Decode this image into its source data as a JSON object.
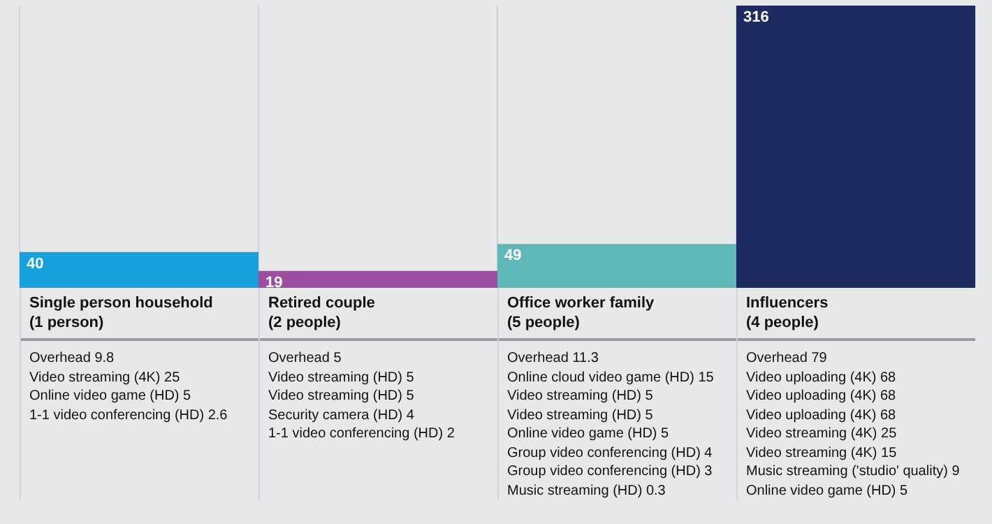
{
  "chart_data": {
    "type": "bar",
    "categories": [
      "Single person household\n(1 person)",
      "Retired couple\n(2 people)",
      "Office worker family\n(5 people)",
      "Influencers\n(4 people)"
    ],
    "values": [
      40,
      19,
      49,
      316
    ],
    "colors": [
      "#16a0dc",
      "#9c4f9e",
      "#5fb8b7",
      "#1f2a60"
    ],
    "data_labels": true,
    "grid": "x",
    "annotations": [
      "Overhead 9.8\nVideo streaming (4K) 25\nOnline video game (HD) 5\n1-1 video conferencing (HD) 2.6",
      "Overhead 5\nVideo streaming (HD) 5\nVideo streaming (HD) 5\nSecurity camera (HD) 4\n1-1 video conferencing (HD) 2",
      "Overhead 11.3\nOnline cloud video game (HD) 15\nVideo streaming (HD) 5\nVideo streaming (HD) 5\nOnline video game (HD) 5\nGroup video conferencing (HD) 4\nGroup video conferencing (HD) 3\nMusic streaming (HD) 0.3",
      "Overhead 79\nVideo uploading (4K) 68\nVideo uploading (4K) 68\nVideo uploading (4K) 68\nVideo streaming (4K) 25\nVideo streaming (4K) 15\nMusic streaming ('studio' quality) 9\nOnline video game (HD) 5"
    ]
  }
}
